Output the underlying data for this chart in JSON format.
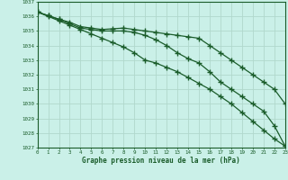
{
  "title": "Graphe pression niveau de la mer (hPa)",
  "bg_color": "#caf0e8",
  "line_color": "#1a5c2a",
  "grid_color": "#b0d8cc",
  "xlim": [
    0,
    23
  ],
  "ylim": [
    1027,
    1037
  ],
  "yticks": [
    1027,
    1028,
    1029,
    1030,
    1031,
    1032,
    1033,
    1034,
    1035,
    1036,
    1037
  ],
  "xticks": [
    0,
    1,
    2,
    3,
    4,
    5,
    6,
    7,
    8,
    9,
    10,
    11,
    12,
    13,
    14,
    15,
    16,
    17,
    18,
    19,
    20,
    21,
    22,
    23
  ],
  "line_top": [
    1036.3,
    1036.05,
    1035.8,
    1035.6,
    1035.3,
    1035.2,
    1035.1,
    1035.15,
    1035.2,
    1035.1,
    1035.0,
    1034.9,
    1034.8,
    1034.7,
    1034.6,
    1034.5,
    1034.0,
    1033.5,
    1033.0,
    1032.5,
    1032.0,
    1031.5,
    1031.0,
    1030.0
  ],
  "line_mid": [
    1036.3,
    1036.05,
    1035.8,
    1035.5,
    1035.2,
    1035.1,
    1035.0,
    1035.0,
    1035.0,
    1034.9,
    1034.7,
    1034.4,
    1034.0,
    1033.5,
    1033.1,
    1032.8,
    1032.2,
    1031.5,
    1031.0,
    1030.5,
    1030.0,
    1029.5,
    1028.5,
    1027.1
  ],
  "line_bot": [
    1036.3,
    1036.0,
    1035.7,
    1035.4,
    1035.1,
    1034.8,
    1034.5,
    1034.2,
    1033.9,
    1033.5,
    1033.0,
    1032.8,
    1032.5,
    1032.2,
    1031.8,
    1031.4,
    1031.0,
    1030.5,
    1030.0,
    1029.4,
    1028.8,
    1028.2,
    1027.6,
    1027.1
  ]
}
